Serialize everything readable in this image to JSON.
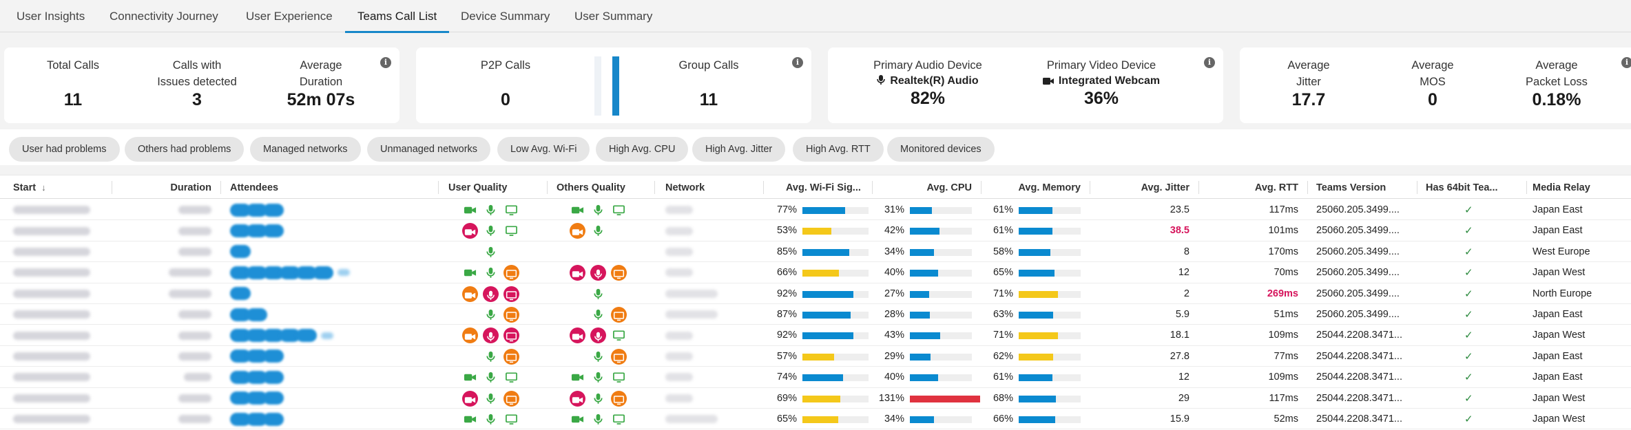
{
  "tabs": [
    "User Insights",
    "Connectivity Journey",
    "User Experience",
    "Teams Call List",
    "Device Summary",
    "User Summary"
  ],
  "active_tab": "Teams Call List",
  "cards": {
    "total_calls": {
      "label": "Total Calls",
      "value": "11"
    },
    "issue_calls": {
      "label_line1": "Calls with",
      "label_line2": "Issues detected",
      "value": "3"
    },
    "avg_duration": {
      "label_line1": "Average",
      "label_line2": "Duration",
      "value": "52m 07s"
    },
    "p2p_calls": {
      "label": "P2P Calls",
      "value": "0"
    },
    "group_calls": {
      "label": "Group Calls",
      "value": "11"
    },
    "audio_device": {
      "label": "Primary Audio Device",
      "device": "Realtek(R) Audio",
      "value": "82%"
    },
    "video_device": {
      "label": "Primary Video Device",
      "device": "Integrated Webcam",
      "value": "36%"
    },
    "avg_jitter": {
      "label_line1": "Average",
      "label_line2": "Jitter",
      "value": "17.7"
    },
    "avg_mos": {
      "label_line1": "Average",
      "label_line2": "MOS",
      "value": "0"
    },
    "avg_packet_loss": {
      "label_line1": "Average",
      "label_line2": "Packet Loss",
      "value": "0.18%"
    }
  },
  "p2p_group_ratio": {
    "p2p": 0,
    "group": 11
  },
  "filters": [
    "User had problems",
    "Others had problems",
    "Managed networks",
    "Unmanaged networks",
    "Low Avg. Wi-Fi",
    "High Avg. CPU",
    "High Avg. Jitter",
    "High Avg. RTT",
    "Monitored devices"
  ],
  "columns": {
    "start": "Start",
    "duration": "Duration",
    "attendees": "Attendees",
    "user_quality": "User Quality",
    "others_quality": "Others Quality",
    "network": "Network",
    "wifi": "Avg. Wi-Fi Sig...",
    "cpu": "Avg. CPU",
    "memory": "Avg. Memory",
    "jitter": "Avg. Jitter",
    "rtt": "Avg. RTT",
    "teams_version": "Teams Version",
    "has64bit": "Has 64bit Tea...",
    "media_relay": "Media Relay"
  },
  "sort_indicator": "↓",
  "colors": {
    "accent": "#1787c9",
    "good": "#3aa845",
    "bad": "#d6155c",
    "warn": "#f07c12",
    "bar_blue": "#0a8ad0",
    "bar_yellow": "#f4c81a",
    "bar_red": "#e0323f"
  },
  "rows": [
    {
      "wifi": "77%",
      "cpu": "31%",
      "memory": "61%",
      "jitter": "23.5",
      "rtt": "117ms",
      "version": "25060.205.3499....",
      "relay": "Japan East",
      "check": "✓"
    },
    {
      "wifi": "53%",
      "cpu": "42%",
      "memory": "61%",
      "jitter": "38.5",
      "rtt": "101ms",
      "version": "25060.205.3499....",
      "relay": "Japan East",
      "check": "✓"
    },
    {
      "wifi": "85%",
      "cpu": "34%",
      "memory": "58%",
      "jitter": "8",
      "rtt": "170ms",
      "version": "25060.205.3499....",
      "relay": "West Europe",
      "check": "✓"
    },
    {
      "wifi": "66%",
      "cpu": "40%",
      "memory": "65%",
      "jitter": "12",
      "rtt": "70ms",
      "version": "25060.205.3499....",
      "relay": "Japan West",
      "check": "✓"
    },
    {
      "wifi": "92%",
      "cpu": "27%",
      "memory": "71%",
      "jitter": "2",
      "rtt": "269ms",
      "version": "25060.205.3499....",
      "relay": "North Europe",
      "check": "✓"
    },
    {
      "wifi": "87%",
      "cpu": "28%",
      "memory": "63%",
      "jitter": "5.9",
      "rtt": "51ms",
      "version": "25060.205.3499....",
      "relay": "Japan East",
      "check": "✓"
    },
    {
      "wifi": "92%",
      "cpu": "43%",
      "memory": "71%",
      "jitter": "18.1",
      "rtt": "109ms",
      "version": "25044.2208.3471...",
      "relay": "Japan West",
      "check": "✓"
    },
    {
      "wifi": "57%",
      "cpu": "29%",
      "memory": "62%",
      "jitter": "27.8",
      "rtt": "77ms",
      "version": "25044.2208.3471...",
      "relay": "Japan East",
      "check": "✓"
    },
    {
      "wifi": "74%",
      "cpu": "40%",
      "memory": "61%",
      "jitter": "12",
      "rtt": "109ms",
      "version": "25044.2208.3471...",
      "relay": "Japan East",
      "check": "✓"
    },
    {
      "wifi": "69%",
      "cpu": "131%",
      "memory": "68%",
      "jitter": "29",
      "rtt": "117ms",
      "version": "25044.2208.3471...",
      "relay": "Japan West",
      "check": "✓"
    },
    {
      "wifi": "65%",
      "cpu": "34%",
      "memory": "66%",
      "jitter": "15.9",
      "rtt": "52ms",
      "version": "25044.2208.3471...",
      "relay": "Japan West",
      "check": "✓"
    }
  ]
}
